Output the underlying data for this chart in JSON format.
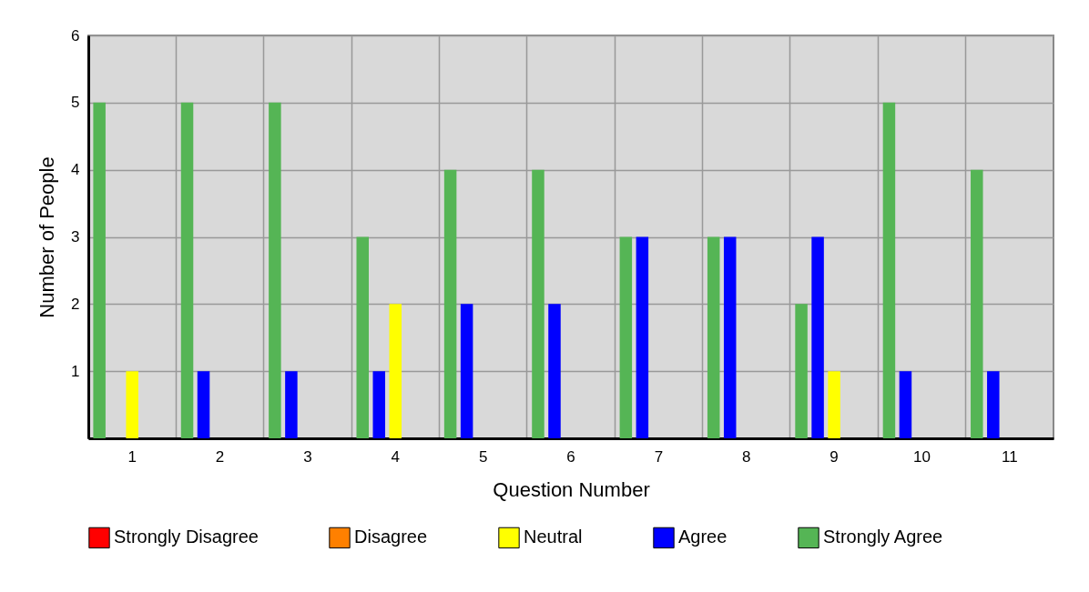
{
  "chart_data": {
    "type": "bar",
    "xlabel": "Question Number",
    "ylabel": "Number of People",
    "categories": [
      "1",
      "2",
      "3",
      "4",
      "5",
      "6",
      "7",
      "8",
      "9",
      "10",
      "11"
    ],
    "series": [
      {
        "name": "Strongly Disagree",
        "color": "#ff0000",
        "values": [
          0,
          0,
          0,
          0,
          0,
          0,
          0,
          0,
          0,
          0,
          0
        ]
      },
      {
        "name": "Disagree",
        "color": "#ff8000",
        "values": [
          0,
          0,
          0,
          0,
          0,
          0,
          0,
          0,
          0,
          0,
          0
        ]
      },
      {
        "name": "Neutral",
        "color": "#ffff00",
        "values": [
          1,
          0,
          0,
          2,
          0,
          0,
          0,
          0,
          1,
          0,
          0
        ]
      },
      {
        "name": "Agree",
        "color": "#0000ff",
        "values": [
          0,
          1,
          1,
          1,
          2,
          2,
          3,
          3,
          3,
          1,
          1
        ]
      },
      {
        "name": "Strongly Agree",
        "color": "#55b555",
        "values": [
          5,
          5,
          5,
          3,
          4,
          4,
          3,
          3,
          2,
          5,
          4
        ]
      }
    ],
    "ylim": [
      0,
      6
    ],
    "yticks": [
      {
        "value": 0,
        "label": null
      },
      1,
      2,
      3,
      4,
      5,
      6
    ],
    "grid": true,
    "legend": "bottom"
  }
}
